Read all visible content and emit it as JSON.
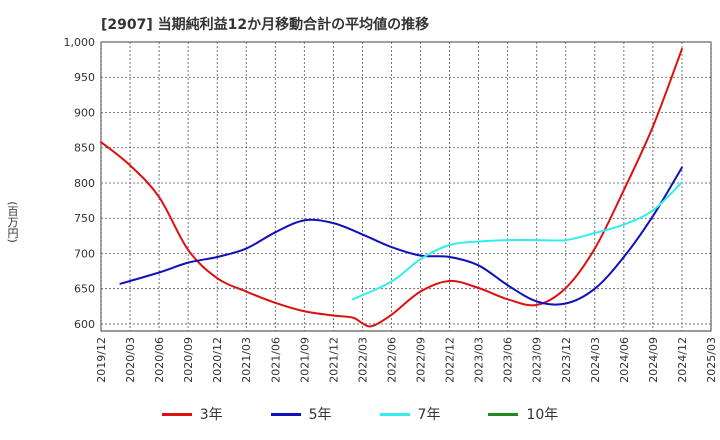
{
  "title": "[2907]  当期純利益12か月移動合計の平均値の推移",
  "y_unit": "(百万円)",
  "chart_data": {
    "type": "line",
    "title": "[2907]  当期純利益12か月移動合計の平均値の推移",
    "ylabel": "(百万円)",
    "ylim": [
      590,
      1000
    ],
    "yticks": [
      600,
      650,
      700,
      750,
      800,
      850,
      900,
      950,
      1000
    ],
    "ytick_labels": [
      "600",
      "650",
      "700",
      "750",
      "800",
      "850",
      "900",
      "950",
      "1,000"
    ],
    "xticks": [
      "2019/12",
      "2020/03",
      "2020/06",
      "2020/09",
      "2020/12",
      "2021/03",
      "2021/06",
      "2021/09",
      "2021/12",
      "2022/03",
      "2022/06",
      "2022/09",
      "2022/12",
      "2023/03",
      "2023/06",
      "2023/09",
      "2023/12",
      "2024/03",
      "2024/06",
      "2024/09",
      "2024/12",
      "2025/03"
    ],
    "grid": true,
    "legend_position": "bottom",
    "series": [
      {
        "name": "3年",
        "color": "#dd1111",
        "points": [
          [
            "2019/12",
            858
          ],
          [
            "2020/03",
            825
          ],
          [
            "2020/06",
            780
          ],
          [
            "2020/09",
            705
          ],
          [
            "2020/12",
            665
          ],
          [
            "2021/03",
            646
          ],
          [
            "2021/06",
            630
          ],
          [
            "2021/09",
            618
          ],
          [
            "2021/12",
            612
          ],
          [
            "2022/02",
            609
          ],
          [
            "2022/03",
            601
          ],
          [
            "2022/04",
            597
          ],
          [
            "2022/06",
            613
          ],
          [
            "2022/09",
            646
          ],
          [
            "2022/12",
            661
          ],
          [
            "2023/03",
            651
          ],
          [
            "2023/06",
            635
          ],
          [
            "2023/09",
            627
          ],
          [
            "2023/12",
            651
          ],
          [
            "2024/03",
            707
          ],
          [
            "2024/06",
            790
          ],
          [
            "2024/09",
            880
          ],
          [
            "2024/12",
            990
          ]
        ]
      },
      {
        "name": "5年",
        "color": "#1111bb",
        "points": [
          [
            "2020/02",
            657
          ],
          [
            "2020/06",
            673
          ],
          [
            "2020/09",
            687
          ],
          [
            "2020/12",
            695
          ],
          [
            "2021/03",
            707
          ],
          [
            "2021/06",
            730
          ],
          [
            "2021/09",
            747
          ],
          [
            "2021/12",
            743
          ],
          [
            "2022/03",
            727
          ],
          [
            "2022/06",
            709
          ],
          [
            "2022/09",
            697
          ],
          [
            "2022/12",
            695
          ],
          [
            "2023/03",
            683
          ],
          [
            "2023/06",
            655
          ],
          [
            "2023/09",
            632
          ],
          [
            "2023/12",
            629
          ],
          [
            "2024/03",
            650
          ],
          [
            "2024/06",
            695
          ],
          [
            "2024/09",
            753
          ],
          [
            "2024/12",
            822
          ]
        ]
      },
      {
        "name": "7年",
        "color": "#33eeee",
        "points": [
          [
            "2022/02",
            635
          ],
          [
            "2022/06",
            660
          ],
          [
            "2022/09",
            692
          ],
          [
            "2022/12",
            712
          ],
          [
            "2023/03",
            717
          ],
          [
            "2023/06",
            719
          ],
          [
            "2023/09",
            719
          ],
          [
            "2023/12",
            719
          ],
          [
            "2024/03",
            729
          ],
          [
            "2024/06",
            741
          ],
          [
            "2024/09",
            761
          ],
          [
            "2024/12",
            801
          ]
        ]
      },
      {
        "name": "10年",
        "color": "#228822",
        "points": []
      }
    ]
  }
}
